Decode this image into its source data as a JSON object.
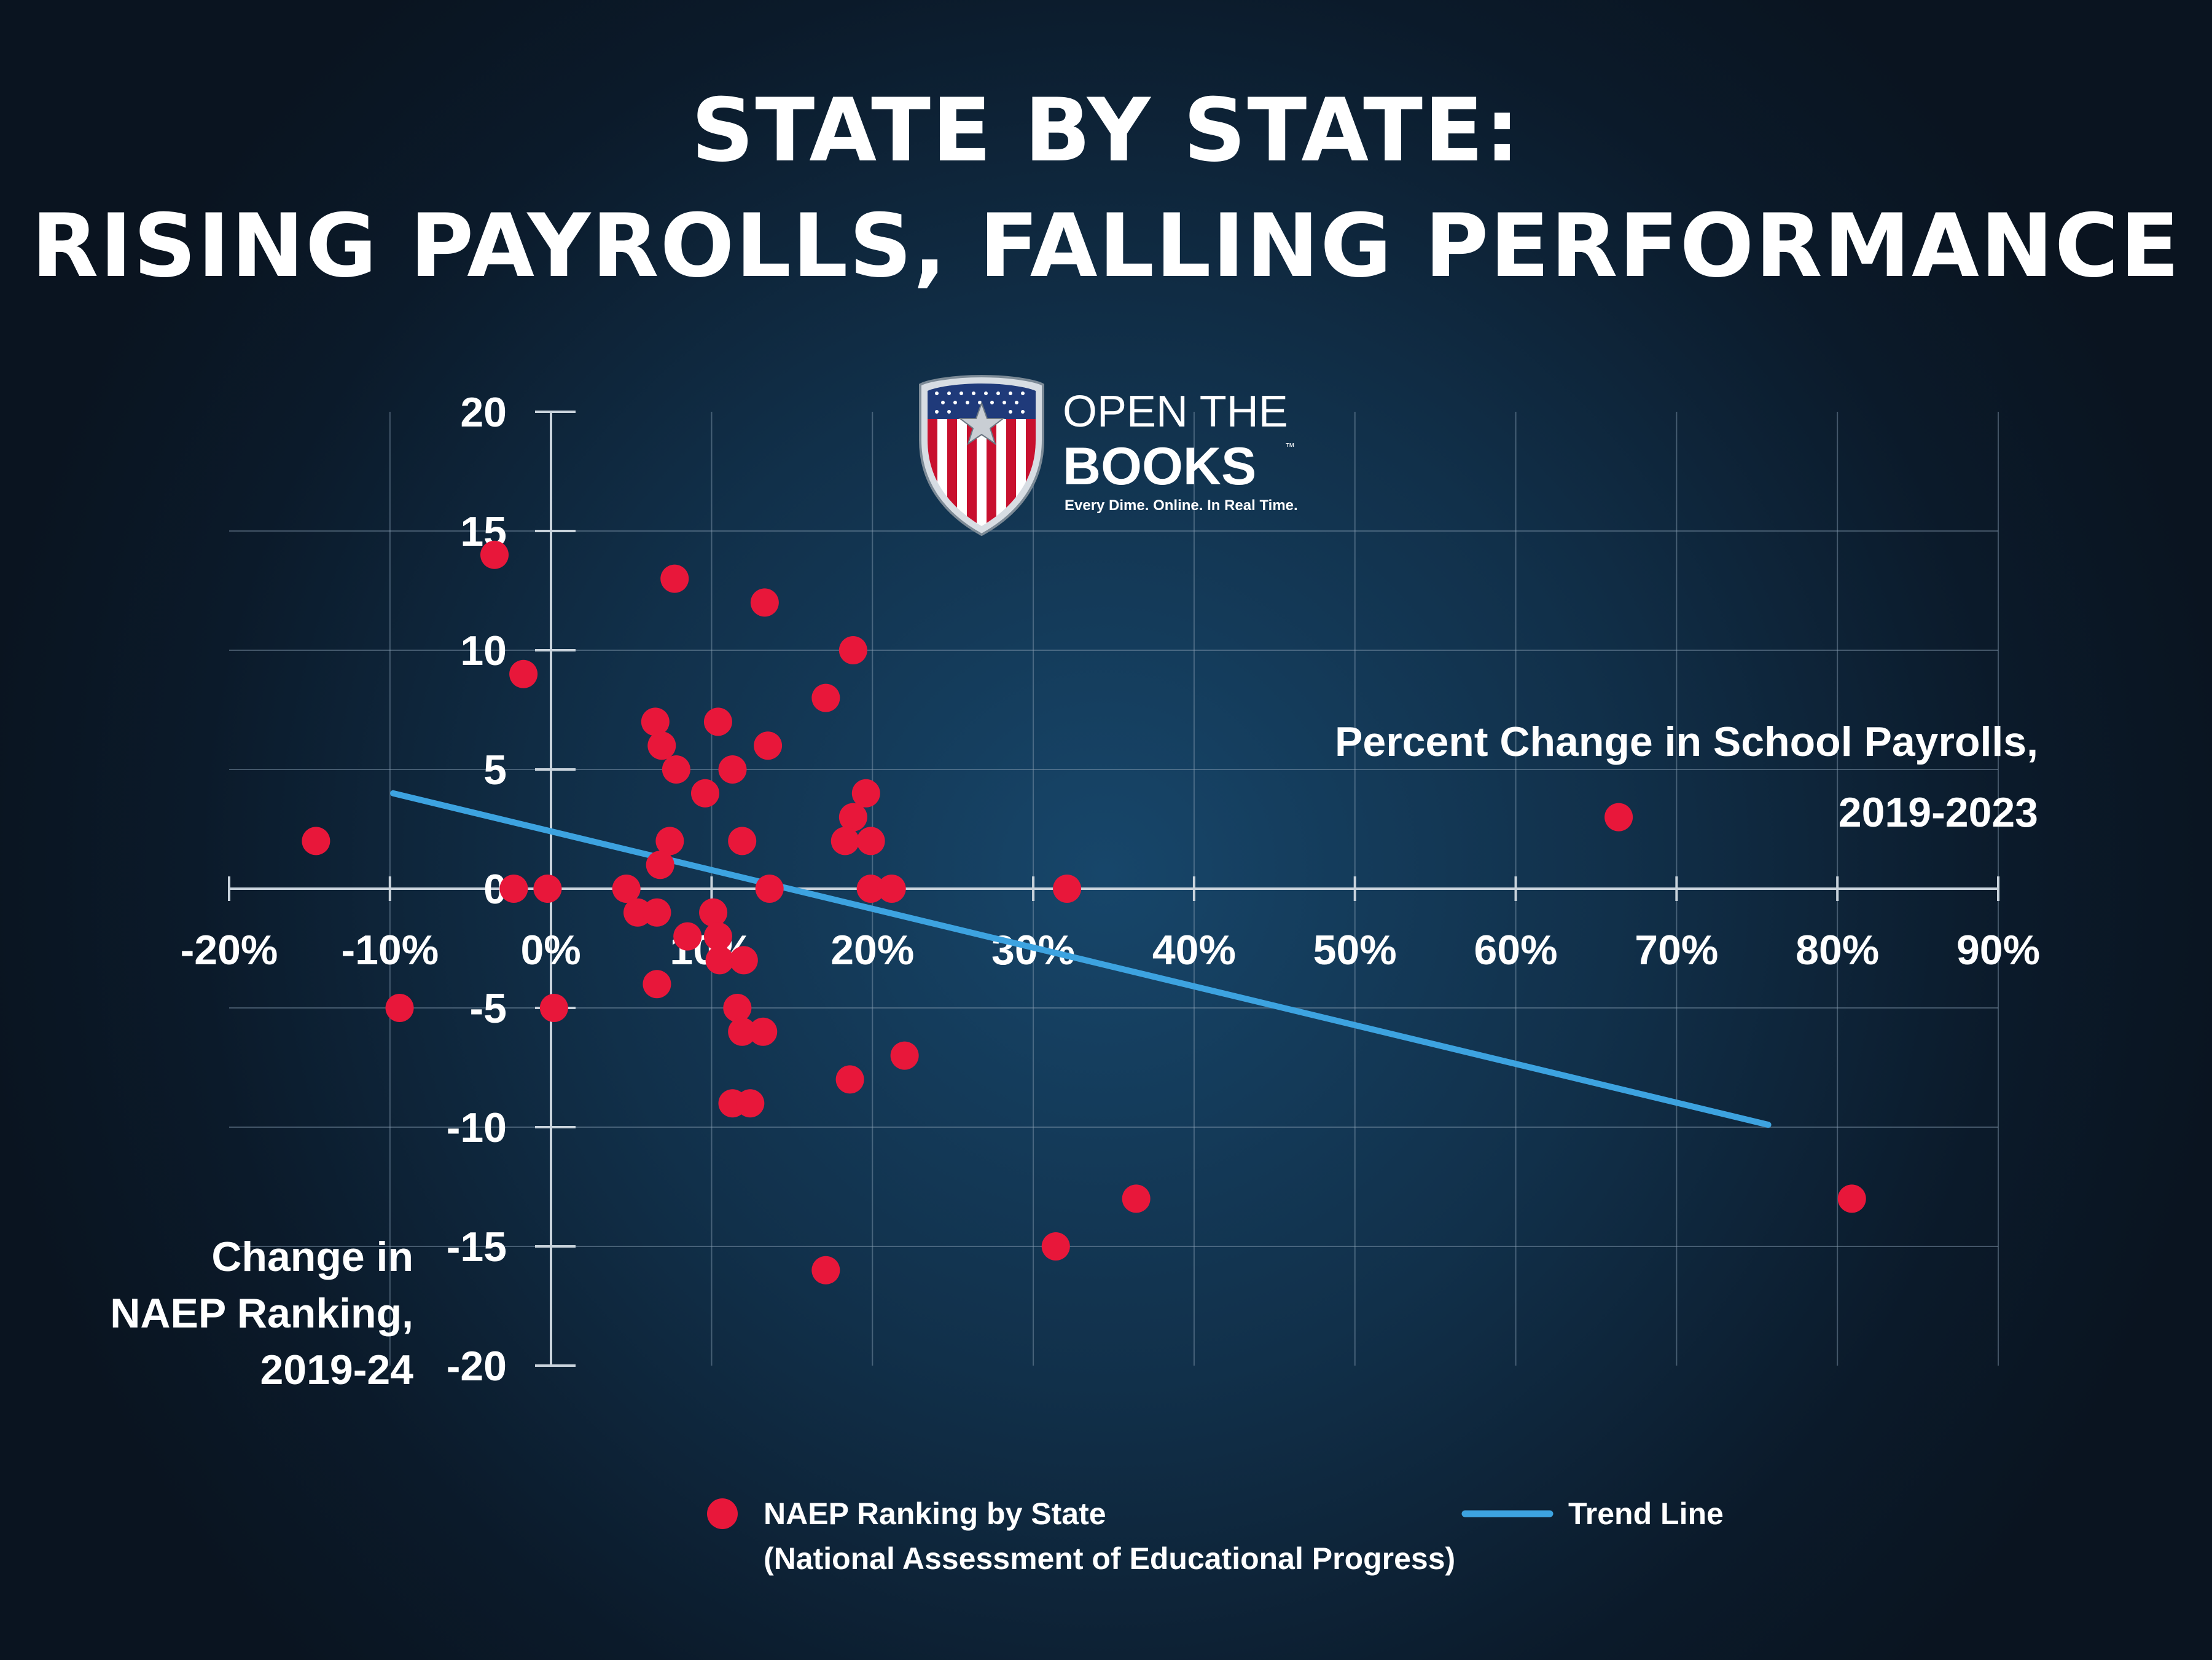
{
  "title": {
    "line1": "STATE BY STATE:",
    "line2": "RISING PAYROLLS, FALLING PERFORMANCE"
  },
  "logo": {
    "icon": "american-flag-shield-icon",
    "line1": "OPEN THE",
    "line2": "BOOKS",
    "trademark": "™",
    "tagline": "Every Dime. Online. In Real Time."
  },
  "colors": {
    "background": "#0a1420",
    "glow": "#17466a",
    "point": "#e8173a",
    "trend": "#3da3e0",
    "grid": "#8aa0b4",
    "axis": "#c9d3dc",
    "text": "#ffffff"
  },
  "chart_data": {
    "type": "scatter",
    "title": "STATE BY STATE: RISING PAYROLLS, FALLING PERFORMANCE",
    "xlabel": "Percent Change in School Payrolls, 2019-2023",
    "xlabel_lines": [
      "Percent Change in School Payrolls,",
      "2019-2023"
    ],
    "ylabel": "Change in NAEP Ranking, 2019-24",
    "ylabel_lines": [
      "Change in",
      "NAEP Ranking,",
      "2019-24"
    ],
    "xlim": [
      -20,
      90
    ],
    "ylim": [
      -20,
      20
    ],
    "x_ticks": [
      -20,
      -10,
      0,
      10,
      20,
      30,
      40,
      50,
      60,
      70,
      80,
      90
    ],
    "x_tick_labels": [
      "-20%",
      "-10%",
      "0%",
      "10%",
      "20%",
      "30%",
      "40%",
      "50%",
      "60%",
      "70%",
      "80%",
      "90%"
    ],
    "y_ticks": [
      20,
      15,
      10,
      5,
      0,
      -5,
      -10,
      -15,
      -20
    ],
    "y_tick_labels": [
      "20",
      "15",
      "10",
      "5",
      "0",
      "-5",
      "-10",
      "-15",
      "-20"
    ],
    "grid": true,
    "legend_position": "bottom",
    "series": [
      {
        "name": "NAEP Ranking by State",
        "legend_lines": [
          "NAEP Ranking by State",
          "(National Assessment of Educational Progress)"
        ],
        "kind": "scatter",
        "points": [
          {
            "x": -3.5,
            "y": 14
          },
          {
            "x": 7.7,
            "y": 13
          },
          {
            "x": 13.3,
            "y": 12
          },
          {
            "x": -1.7,
            "y": 9
          },
          {
            "x": 18.8,
            "y": 10
          },
          {
            "x": 17.1,
            "y": 8
          },
          {
            "x": 6.5,
            "y": 7
          },
          {
            "x": 10.4,
            "y": 7
          },
          {
            "x": 6.9,
            "y": 6
          },
          {
            "x": 13.5,
            "y": 6
          },
          {
            "x": 7.8,
            "y": 5
          },
          {
            "x": 11.3,
            "y": 5
          },
          {
            "x": 9.6,
            "y": 4
          },
          {
            "x": 19.6,
            "y": 4
          },
          {
            "x": 18.8,
            "y": 3
          },
          {
            "x": 66.4,
            "y": 3
          },
          {
            "x": -14.6,
            "y": 2
          },
          {
            "x": 7.4,
            "y": 2
          },
          {
            "x": 11.9,
            "y": 2
          },
          {
            "x": 18.3,
            "y": 2
          },
          {
            "x": 19.9,
            "y": 2
          },
          {
            "x": 6.8,
            "y": 1
          },
          {
            "x": -2.3,
            "y": 0
          },
          {
            "x": -0.2,
            "y": 0
          },
          {
            "x": 4.7,
            "y": 0
          },
          {
            "x": 13.6,
            "y": 0
          },
          {
            "x": 19.9,
            "y": 0
          },
          {
            "x": 21.2,
            "y": 0
          },
          {
            "x": 32.1,
            "y": 0
          },
          {
            "x": 5.4,
            "y": -1
          },
          {
            "x": 6.6,
            "y": -1
          },
          {
            "x": 10.1,
            "y": -1
          },
          {
            "x": 8.5,
            "y": -2
          },
          {
            "x": 10.4,
            "y": -2
          },
          {
            "x": 10.5,
            "y": -3
          },
          {
            "x": 12.0,
            "y": -3
          },
          {
            "x": 6.6,
            "y": -4
          },
          {
            "x": -9.4,
            "y": -5
          },
          {
            "x": 0.2,
            "y": -5
          },
          {
            "x": 11.6,
            "y": -5
          },
          {
            "x": 11.9,
            "y": -6
          },
          {
            "x": 13.2,
            "y": -6
          },
          {
            "x": 22.0,
            "y": -7
          },
          {
            "x": 18.6,
            "y": -8
          },
          {
            "x": 11.3,
            "y": -9
          },
          {
            "x": 12.4,
            "y": -9
          },
          {
            "x": 36.4,
            "y": -13
          },
          {
            "x": 80.9,
            "y": -13
          },
          {
            "x": 31.4,
            "y": -15
          },
          {
            "x": 17.1,
            "y": -16
          }
        ]
      },
      {
        "name": "Trend Line",
        "kind": "line",
        "points": [
          {
            "x": -9.8,
            "y": 4
          },
          {
            "x": 75.7,
            "y": -9.9
          }
        ]
      }
    ]
  }
}
